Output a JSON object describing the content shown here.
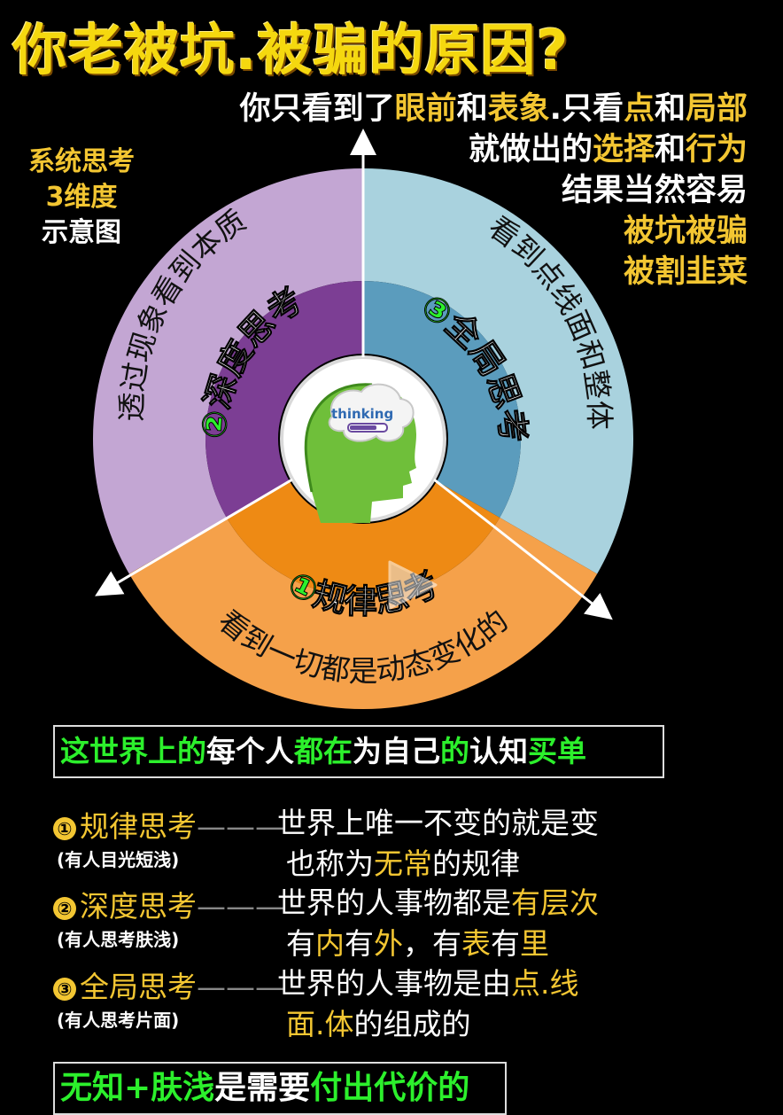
{
  "title": "你老被坑.被骗的原因?",
  "intro": {
    "line1": [
      {
        "t": "你只看到了",
        "c": "w"
      },
      {
        "t": "眼前",
        "c": "y"
      },
      {
        "t": "和",
        "c": "w"
      },
      {
        "t": "表象",
        "c": "y"
      },
      {
        "t": ".只看",
        "c": "w"
      },
      {
        "t": "点",
        "c": "y"
      },
      {
        "t": "和",
        "c": "w"
      },
      {
        "t": "局部",
        "c": "y"
      }
    ],
    "line2": [
      {
        "t": "就做出的",
        "c": "w"
      },
      {
        "t": "选择",
        "c": "y"
      },
      {
        "t": "和",
        "c": "w"
      },
      {
        "t": "行为",
        "c": "y"
      }
    ],
    "line3": "结果当然容易",
    "line4": "被坑被骗",
    "line5": "被割韭菜"
  },
  "legend": {
    "line1": "系统思考",
    "line2": "3维度",
    "line3": "示意图"
  },
  "diagram": {
    "outer": {
      "left": "透过现象看到本质",
      "right": "看到点线面和整体",
      "bottom": "看到一切都是动态变化的"
    },
    "inner": {
      "left": {
        "num": "②",
        "label": "深度思考"
      },
      "right": {
        "num": "③",
        "label": "全局思考"
      },
      "bottom": {
        "num": "①",
        "label": "规律思考"
      }
    },
    "center_label": "thinking",
    "colors": {
      "purple_outer": "#c3a6d3",
      "purple_inner": "#7c3e94",
      "blue_outer": "#a9d2de",
      "blue_inner": "#5b9cbd",
      "orange_outer": "#f5a14a",
      "orange_inner": "#ee8a14",
      "yellow": "#f3c632",
      "green": "#2cf02c"
    }
  },
  "banner": [
    {
      "t": "这世界上的",
      "c": "g"
    },
    {
      "t": "每个人",
      "c": "w"
    },
    {
      "t": "都在",
      "c": "g"
    },
    {
      "t": "为自己",
      "c": "w"
    },
    {
      "t": "的",
      "c": "g"
    },
    {
      "t": "认知",
      "c": "w"
    },
    {
      "t": "买单",
      "c": "g"
    }
  ],
  "dimensions": [
    {
      "num": "①",
      "name": "规律思考",
      "note": "(有人目光短浅)",
      "dash": "———",
      "desc1": [
        {
          "t": "世界上唯一不变的就是变",
          "c": "w"
        }
      ],
      "desc2": [
        {
          "t": "也称为",
          "c": "w"
        },
        {
          "t": "无常",
          "c": "y"
        },
        {
          "t": "的规律",
          "c": "w"
        }
      ]
    },
    {
      "num": "②",
      "name": "深度思考",
      "note": "(有人思考肤浅)",
      "dash": "———",
      "desc1": [
        {
          "t": "世界的人事物都是",
          "c": "w"
        },
        {
          "t": "有层次",
          "c": "y"
        }
      ],
      "desc2": [
        {
          "t": "有",
          "c": "w"
        },
        {
          "t": "内",
          "c": "y"
        },
        {
          "t": "有",
          "c": "w"
        },
        {
          "t": "外",
          "c": "y"
        },
        {
          "t": "，有",
          "c": "w"
        },
        {
          "t": "表",
          "c": "y"
        },
        {
          "t": "有",
          "c": "w"
        },
        {
          "t": "里",
          "c": "y"
        }
      ]
    },
    {
      "num": "③",
      "name": "全局思考",
      "note": "(有人思考片面)",
      "dash": "———",
      "desc1": [
        {
          "t": "世界的人事物是由",
          "c": "w"
        },
        {
          "t": "点.线",
          "c": "y"
        }
      ],
      "desc2": [
        {
          "t": "面.体",
          "c": "y"
        },
        {
          "t": "的组成的",
          "c": "w"
        }
      ]
    }
  ],
  "bottom": [
    {
      "t": "无知+肤浅",
      "c": "g"
    },
    {
      "t": "是需要",
      "c": "w"
    },
    {
      "t": "付出代价的",
      "c": "g"
    }
  ]
}
